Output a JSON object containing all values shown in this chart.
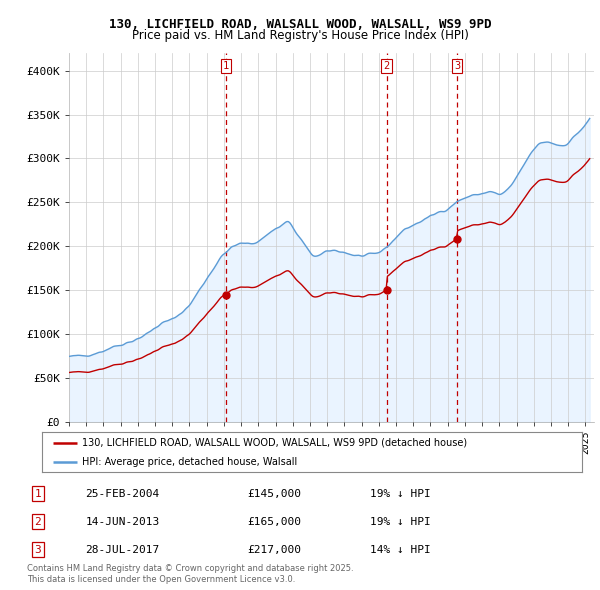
{
  "title_line1": "130, LICHFIELD ROAD, WALSALL WOOD, WALSALL, WS9 9PD",
  "title_line2": "Price paid vs. HM Land Registry's House Price Index (HPI)",
  "ylim": [
    0,
    420000
  ],
  "yticks": [
    0,
    50000,
    100000,
    150000,
    200000,
    250000,
    300000,
    350000,
    400000
  ],
  "ytick_labels": [
    "£0",
    "£50K",
    "£100K",
    "£150K",
    "£200K",
    "£250K",
    "£300K",
    "£350K",
    "£400K"
  ],
  "background_color": "#ffffff",
  "plot_bg_color": "#ffffff",
  "fill_color": "#ddeeff",
  "grid_color": "#cccccc",
  "hpi_color": "#5b9bd5",
  "price_color": "#c00000",
  "vline_color": "#c00000",
  "legend_label_red": "130, LICHFIELD ROAD, WALSALL WOOD, WALSALL, WS9 9PD (detached house)",
  "legend_label_blue": "HPI: Average price, detached house, Walsall",
  "transactions": [
    {
      "num": 1,
      "date": "25-FEB-2004",
      "price": 145000,
      "pct": "19%",
      "x": 2004.12
    },
    {
      "num": 2,
      "date": "14-JUN-2013",
      "price": 165000,
      "pct": "19%",
      "x": 2013.45
    },
    {
      "num": 3,
      "date": "28-JUL-2017",
      "price": 217000,
      "pct": "14%",
      "x": 2017.54
    }
  ],
  "footer_line1": "Contains HM Land Registry data © Crown copyright and database right 2025.",
  "footer_line2": "This data is licensed under the Open Government Licence v3.0.",
  "xlim_start": 1995.0,
  "xlim_end": 2025.5
}
